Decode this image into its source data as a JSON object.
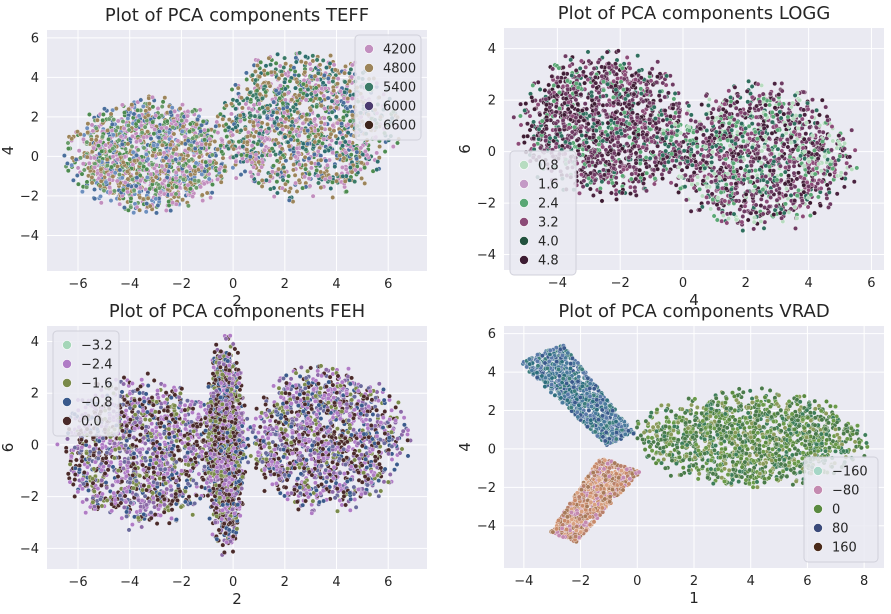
{
  "chart_data": [
    {
      "type": "scatter",
      "title": "Plot of PCA components TEFF",
      "xlabel": "2",
      "ylabel": "4",
      "xlim": [
        -7.2,
        7.5
      ],
      "ylim": [
        -5.8,
        6.4
      ],
      "xticks": [
        -6,
        -4,
        -2,
        0,
        2,
        4,
        6
      ],
      "yticks": [
        -4,
        -2,
        0,
        2,
        4,
        6
      ],
      "xtick_labels": [
        "−6",
        "−4",
        "−2",
        "0",
        "2",
        "4",
        "6"
      ],
      "ytick_labels": [
        "−4",
        "−2",
        "0",
        "2",
        "4",
        "6"
      ],
      "grid": true,
      "legend_position": "top-right",
      "legend": [
        {
          "label": "4200",
          "color": "#c28fbf"
        },
        {
          "label": "4800",
          "color": "#9c845a"
        },
        {
          "label": "5400",
          "color": "#3b7a67"
        },
        {
          "label": "6000",
          "color": "#4a3a6e"
        },
        {
          "label": "6600",
          "color": "#3d2419"
        }
      ],
      "clusters": [
        {
          "shape": "ellipse",
          "cx": -3.2,
          "cy": 0.0,
          "rx": 3.3,
          "ry": 3.0,
          "colors": [
            "#c28fbf",
            "#9c845a",
            "#4d8b50",
            "#6d8fbf",
            "#c28fbf",
            "#9c845a",
            "#4a6e9c",
            "#6a9c6b"
          ]
        },
        {
          "shape": "ellipse",
          "cx": 2.8,
          "cy": 1.5,
          "rx": 3.6,
          "ry": 3.8,
          "colors": [
            "#c28fbf",
            "#9c845a",
            "#3b7a67",
            "#4d8b50",
            "#2e6e6e",
            "#c28fbf",
            "#9c845a",
            "#4a6e9c"
          ]
        }
      ]
    },
    {
      "type": "scatter",
      "title": "Plot of PCA components LOGG",
      "xlabel": "4",
      "ylabel": "6",
      "xlim": [
        -5.7,
        6.4
      ],
      "ylim": [
        -4.6,
        4.8
      ],
      "xticks": [
        -4,
        -2,
        0,
        2,
        4,
        6
      ],
      "yticks": [
        -4,
        -2,
        0,
        2,
        4
      ],
      "xtick_labels": [
        "−4",
        "−2",
        "0",
        "2",
        "4",
        "6"
      ],
      "ytick_labels": [
        "−4",
        "−2",
        "0",
        "2",
        "4"
      ],
      "grid": true,
      "legend_position": "center-left",
      "legend": [
        {
          "label": "0.8",
          "color": "#b7dcc0"
        },
        {
          "label": "1.6",
          "color": "#c49ac6"
        },
        {
          "label": "2.4",
          "color": "#5aa775"
        },
        {
          "label": "3.2",
          "color": "#8c4b78"
        },
        {
          "label": "4.0",
          "color": "#22523f"
        },
        {
          "label": "4.8",
          "color": "#3d1c33"
        }
      ],
      "clusters": [
        {
          "shape": "ellipse",
          "cx": -2.5,
          "cy": 1.0,
          "rx": 2.8,
          "ry": 3.0,
          "colors": [
            "#4a2340",
            "#6e3b63",
            "#3d1c33",
            "#8c4b78",
            "#5aa775",
            "#2e6e5e",
            "#4a2340",
            "#6e3b63"
          ]
        },
        {
          "shape": "ellipse",
          "cx": 2.4,
          "cy": -0.2,
          "rx": 3.2,
          "ry": 2.9,
          "colors": [
            "#4a2340",
            "#6e3b63",
            "#3d1c33",
            "#8c4b78",
            "#5aa775",
            "#b7dcc0",
            "#2e6e5e",
            "#6e3b63"
          ]
        }
      ]
    },
    {
      "type": "scatter",
      "title": "Plot of PCA components FEH",
      "xlabel": "2",
      "ylabel": "6",
      "xlim": [
        -7.2,
        7.5
      ],
      "ylim": [
        -4.8,
        4.6
      ],
      "xticks": [
        -6,
        -4,
        -2,
        0,
        2,
        4,
        6
      ],
      "yticks": [
        -4,
        -2,
        0,
        2,
        4
      ],
      "xtick_labels": [
        "−6",
        "−4",
        "−2",
        "0",
        "2",
        "4",
        "6"
      ],
      "ytick_labels": [
        "−4",
        "−2",
        "0",
        "2",
        "4"
      ],
      "grid": true,
      "legend_position": "top-left",
      "legend": [
        {
          "label": "−3.2",
          "color": "#a5d6b8"
        },
        {
          "label": "−2.4",
          "color": "#b07cc6"
        },
        {
          "label": "−1.6",
          "color": "#7a8a4a"
        },
        {
          "label": "−0.8",
          "color": "#3a5a8c"
        },
        {
          "label": "0.0",
          "color": "#4a2a2a"
        }
      ],
      "clusters": [
        {
          "shape": "ellipse",
          "cx": -3.6,
          "cy": -0.3,
          "rx": 3.2,
          "ry": 3.0,
          "colors": [
            "#4a2a2a",
            "#b07cc6",
            "#7a8a4a",
            "#3a5a8c",
            "#8c6aa8",
            "#4a2a2a",
            "#6a6a9c",
            "#b07cc6"
          ]
        },
        {
          "shape": "ellipse",
          "cx": 3.6,
          "cy": 0.2,
          "rx": 3.2,
          "ry": 2.9,
          "colors": [
            "#4a2a2a",
            "#b07cc6",
            "#7a8a4a",
            "#3a5a8c",
            "#8c6aa8",
            "#4a2a2a",
            "#6a6a9c",
            "#b07cc6"
          ]
        },
        {
          "shape": "ellipse",
          "cx": -0.3,
          "cy": 0.0,
          "rx": 0.8,
          "ry": 4.3,
          "colors": [
            "#4a2a2a",
            "#b07cc6",
            "#7a8a4a",
            "#3a5a8c",
            "#8c6aa8",
            "#4a2a2a"
          ]
        }
      ]
    },
    {
      "type": "scatter",
      "title": "Plot of PCA components VRAD",
      "xlabel": "1",
      "ylabel": "4",
      "xlim": [
        -4.7,
        8.7
      ],
      "ylim": [
        -6.2,
        6.4
      ],
      "xticks": [
        -4,
        -2,
        0,
        2,
        4,
        6,
        8
      ],
      "yticks": [
        -4,
        -2,
        0,
        2,
        4,
        6
      ],
      "xtick_labels": [
        "−4",
        "−2",
        "0",
        "2",
        "4",
        "6",
        "8"
      ],
      "ytick_labels": [
        "−4",
        "−2",
        "0",
        "2",
        "4",
        "6"
      ],
      "grid": true,
      "legend_position": "lower-right",
      "legend": [
        {
          "label": "−160",
          "color": "#a5d6c6"
        },
        {
          "label": "−80",
          "color": "#c48ab0"
        },
        {
          "label": "0",
          "color": "#5a8a40"
        },
        {
          "label": "80",
          "color": "#3a4a7a"
        },
        {
          "label": "160",
          "color": "#4a2a1a"
        }
      ],
      "clusters": [
        {
          "shape": "ellipse",
          "cx": 4.0,
          "cy": 0.5,
          "rx": 4.2,
          "ry": 2.6,
          "colors": [
            "#4a7a4a",
            "#5a8a40",
            "#3e7e5a",
            "#6a9a4a",
            "#4a7a4a",
            "#8a9a5a"
          ]
        },
        {
          "shape": "band",
          "x0": -3.4,
          "y0": 5.0,
          "x1": -0.6,
          "y1": 0.5,
          "width": 1.8,
          "colors": [
            "#3a5a8c",
            "#4a7a9c",
            "#2e6e7e",
            "#5a7aa8",
            "#3e7e7e"
          ]
        },
        {
          "shape": "band",
          "x0": -0.6,
          "y0": -0.8,
          "x1": -2.6,
          "y1": -4.6,
          "width": 1.6,
          "colors": [
            "#c88a6a",
            "#d8a080",
            "#b8806a",
            "#c48ab0",
            "#a87a5a"
          ]
        }
      ]
    }
  ]
}
